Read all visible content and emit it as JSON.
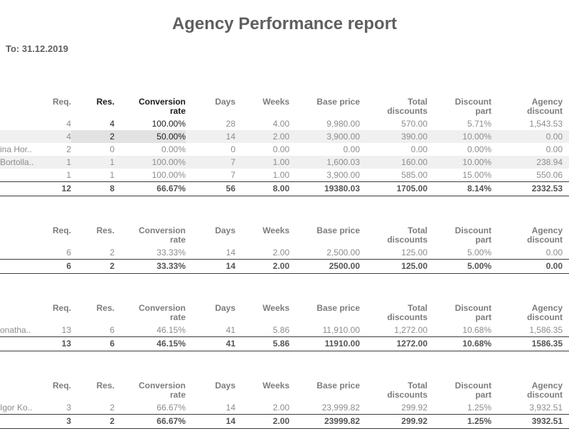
{
  "title": "Agency Performance report",
  "date_line": "To: 31.12.2019",
  "colors": {
    "title_text": "#5f5f5f",
    "header_text": "#7d7d7d",
    "muted_text": "#8c8c8c",
    "accent_text": "#1a1a1a",
    "total_text": "#555555",
    "stripe": "#f0f0f0",
    "highlight_cell": "#e2e2e2",
    "rule": "#3c3c3c"
  },
  "table": {
    "columns": [
      {
        "key": "name",
        "lines": []
      },
      {
        "key": "req",
        "lines": [
          "Req."
        ]
      },
      {
        "key": "res",
        "lines": [
          "Res."
        ]
      },
      {
        "key": "conversion",
        "lines": [
          "Conversion",
          "rate"
        ]
      },
      {
        "key": "days",
        "lines": [
          "Days"
        ]
      },
      {
        "key": "weeks",
        "lines": [
          "Weeks"
        ]
      },
      {
        "key": "base_price",
        "lines": [
          "Base price"
        ]
      },
      {
        "key": "total_discounts",
        "lines": [
          "Total",
          "discounts"
        ]
      },
      {
        "key": "discount_part",
        "lines": [
          "Discount",
          "part"
        ]
      },
      {
        "key": "agency_discount",
        "lines": [
          "Agency",
          "discount"
        ]
      }
    ]
  },
  "sections": [
    {
      "emphasize_res_conversion": true,
      "rows": [
        {
          "name": "",
          "req": "4",
          "res": "4",
          "conversion": "100.00%",
          "days": "28",
          "weeks": "4.00",
          "base_price": "9,980.00",
          "total_discounts": "570.00",
          "discount_part": "5.71%",
          "agency_discount": "1,543.53",
          "emphasis": true,
          "highlight_bg": false
        },
        {
          "name": "",
          "req": "4",
          "res": "2",
          "conversion": "50.00%",
          "days": "14",
          "weeks": "2.00",
          "base_price": "3,900.00",
          "total_discounts": "390.00",
          "discount_part": "10.00%",
          "agency_discount": "0.00",
          "emphasis": true,
          "highlight_bg": true
        },
        {
          "name": "ina Hor..",
          "req": "2",
          "res": "0",
          "conversion": "0.00%",
          "days": "0",
          "weeks": "0.00",
          "base_price": "0.00",
          "total_discounts": "0.00",
          "discount_part": "0.00%",
          "agency_discount": "0.00",
          "emphasis": false,
          "highlight_bg": false
        },
        {
          "name": "Bortolla..",
          "req": "1",
          "res": "1",
          "conversion": "100.00%",
          "days": "7",
          "weeks": "1.00",
          "base_price": "1,600.03",
          "total_discounts": "160.00",
          "discount_part": "10.00%",
          "agency_discount": "238.94",
          "emphasis": false,
          "highlight_bg": false
        },
        {
          "name": "",
          "req": "1",
          "res": "1",
          "conversion": "100.00%",
          "days": "7",
          "weeks": "1.00",
          "base_price": "3,900.00",
          "total_discounts": "585.00",
          "discount_part": "15.00%",
          "agency_discount": "550.06",
          "emphasis": false,
          "highlight_bg": false
        }
      ],
      "total": {
        "name": "",
        "req": "12",
        "res": "8",
        "conversion": "66.67%",
        "days": "56",
        "weeks": "8.00",
        "base_price": "19380.03",
        "total_discounts": "1705.00",
        "discount_part": "8.14%",
        "agency_discount": "2332.53"
      }
    },
    {
      "emphasize_res_conversion": false,
      "rows": [
        {
          "name": "",
          "req": "6",
          "res": "2",
          "conversion": "33.33%",
          "days": "14",
          "weeks": "2.00",
          "base_price": "2,500.00",
          "total_discounts": "125.00",
          "discount_part": "5.00%",
          "agency_discount": "0.00",
          "emphasis": false,
          "highlight_bg": false
        }
      ],
      "total": {
        "name": "",
        "req": "6",
        "res": "2",
        "conversion": "33.33%",
        "days": "14",
        "weeks": "2.00",
        "base_price": "2500.00",
        "total_discounts": "125.00",
        "discount_part": "5.00%",
        "agency_discount": "0.00"
      }
    },
    {
      "emphasize_res_conversion": false,
      "rows": [
        {
          "name": "onatha..",
          "req": "13",
          "res": "6",
          "conversion": "46.15%",
          "days": "41",
          "weeks": "5.86",
          "base_price": "11,910.00",
          "total_discounts": "1,272.00",
          "discount_part": "10.68%",
          "agency_discount": "1,586.35",
          "emphasis": false,
          "highlight_bg": false
        }
      ],
      "total": {
        "name": "",
        "req": "13",
        "res": "6",
        "conversion": "46.15%",
        "days": "41",
        "weeks": "5.86",
        "base_price": "11910.00",
        "total_discounts": "1272.00",
        "discount_part": "10.68%",
        "agency_discount": "1586.35"
      }
    },
    {
      "emphasize_res_conversion": false,
      "rows": [
        {
          "name": "Igor Ko..",
          "req": "3",
          "res": "2",
          "conversion": "66.67%",
          "days": "14",
          "weeks": "2.00",
          "base_price": "23,999.82",
          "total_discounts": "299.92",
          "discount_part": "1.25%",
          "agency_discount": "3,932.51",
          "emphasis": false,
          "highlight_bg": false
        }
      ],
      "total": {
        "name": "",
        "req": "3",
        "res": "2",
        "conversion": "66.67%",
        "days": "14",
        "weeks": "2.00",
        "base_price": "23999.82",
        "total_discounts": "299.92",
        "discount_part": "1.25%",
        "agency_discount": "3932.51"
      }
    }
  ]
}
